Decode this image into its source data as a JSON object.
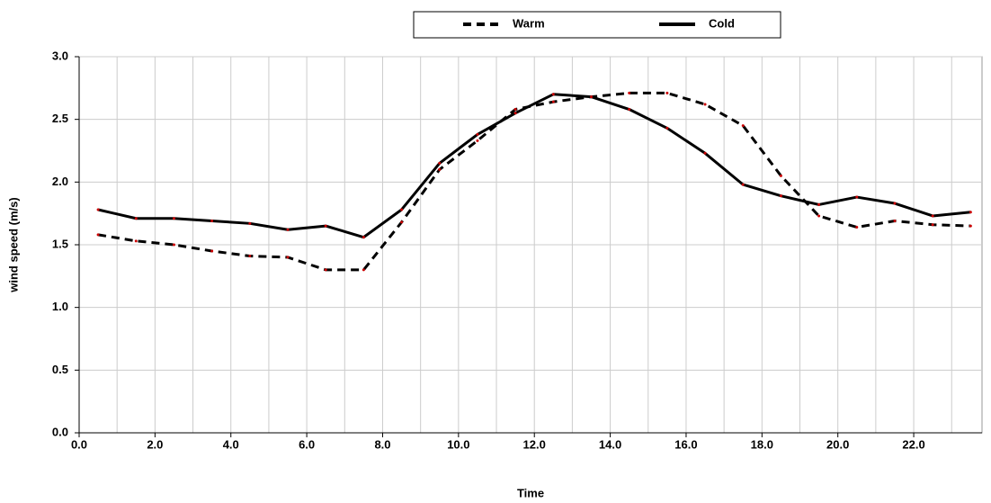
{
  "chart_data": {
    "type": "line",
    "x_label": "Time",
    "y_label": "wind speed (m/s)",
    "x": [
      0.5,
      1.5,
      2.5,
      3.5,
      4.5,
      5.5,
      6.5,
      7.5,
      8.5,
      9.5,
      10.5,
      11.5,
      12.5,
      13.5,
      14.5,
      15.5,
      16.5,
      17.5,
      18.5,
      19.5,
      20.5,
      21.5,
      22.5,
      23.5
    ],
    "series": [
      {
        "name": "Warm",
        "color": "#000000",
        "dash": true,
        "values": [
          1.58,
          1.53,
          1.5,
          1.45,
          1.41,
          1.4,
          1.3,
          1.3,
          1.68,
          2.1,
          2.33,
          2.58,
          2.64,
          2.68,
          2.71,
          2.71,
          2.62,
          2.45,
          2.05,
          1.73,
          1.64,
          1.69,
          1.66,
          1.65
        ]
      },
      {
        "name": "Cold",
        "color": "#000000",
        "dash": false,
        "values": [
          1.78,
          1.71,
          1.71,
          1.69,
          1.67,
          1.62,
          1.65,
          1.56,
          1.78,
          2.15,
          2.38,
          2.55,
          2.7,
          2.68,
          2.58,
          2.43,
          2.23,
          1.98,
          1.89,
          1.82,
          1.88,
          1.83,
          1.73,
          1.76
        ]
      }
    ],
    "marker_color": "#cc0000",
    "xlim": [
      0,
      23.8
    ],
    "xticks": [
      {
        "value": 0,
        "label": "0.0"
      },
      {
        "value": 2,
        "label": "2.0"
      },
      {
        "value": 4,
        "label": "4.0"
      },
      {
        "value": 6,
        "label": "6.0"
      },
      {
        "value": 8,
        "label": "8.0"
      },
      {
        "value": 10,
        "label": "10.0"
      },
      {
        "value": 12,
        "label": "12.0"
      },
      {
        "value": 14,
        "label": "14.0"
      },
      {
        "value": 16,
        "label": "16.0"
      },
      {
        "value": 18,
        "label": "18.0"
      },
      {
        "value": 20,
        "label": "20.0"
      },
      {
        "value": 22,
        "label": "22.0"
      }
    ],
    "xminorticks": [
      1,
      3,
      5,
      7,
      9,
      11,
      13,
      15,
      17,
      19,
      21,
      23
    ],
    "ylim": [
      0,
      3
    ],
    "yticks": [
      {
        "value": 0,
        "label": "0.0"
      },
      {
        "value": 0.5,
        "label": "0.5"
      },
      {
        "value": 1,
        "label": "1.0"
      },
      {
        "value": 1.5,
        "label": "1.5"
      },
      {
        "value": 2,
        "label": "2.0"
      },
      {
        "value": 2.5,
        "label": "2.5"
      },
      {
        "value": 3,
        "label": "3.0"
      }
    ],
    "grid": true,
    "legend": "top"
  }
}
